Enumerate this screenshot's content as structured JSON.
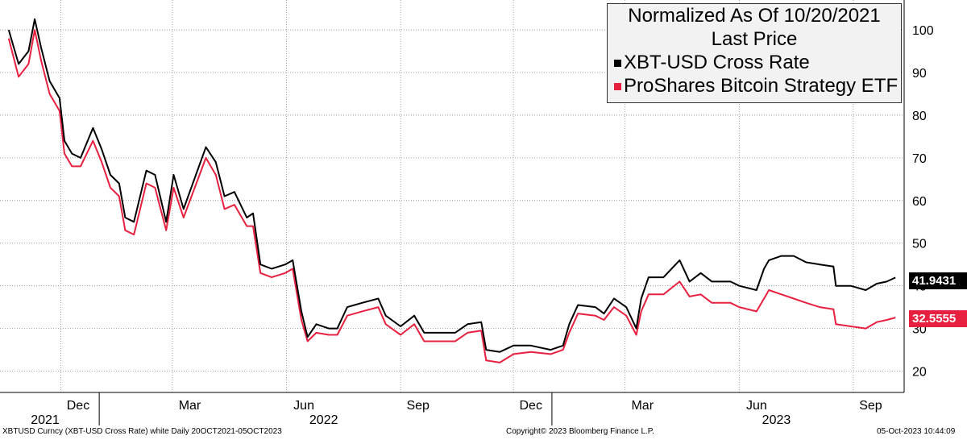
{
  "chart_data": {
    "type": "line",
    "title": "Normalized As Of 10/20/2021",
    "subtitle": "Last Price",
    "y_ticks": [
      20,
      30,
      40,
      50,
      60,
      70,
      80,
      90,
      100
    ],
    "ylim": [
      15,
      107
    ],
    "month_labels": [
      "Dec",
      "Mar",
      "Jun",
      "Sep",
      "Dec",
      "Mar",
      "Jun",
      "Sep"
    ],
    "year_labels": [
      "2021",
      "2022",
      "2023"
    ],
    "grid": true,
    "legend_position": "top-right",
    "series": [
      {
        "name": "XBT-USD Cross Rate",
        "color": "#000000",
        "last_value_label": "41.9431",
        "points": [
          [
            "2021-10-20",
            100
          ],
          [
            "2021-10-28",
            92
          ],
          [
            "2021-11-05",
            95
          ],
          [
            "2021-11-10",
            102.5
          ],
          [
            "2021-11-15",
            96
          ],
          [
            "2021-11-22",
            88
          ],
          [
            "2021-11-30",
            84
          ],
          [
            "2021-12-04",
            74
          ],
          [
            "2021-12-10",
            71
          ],
          [
            "2021-12-17",
            70
          ],
          [
            "2021-12-27",
            77
          ],
          [
            "2022-01-03",
            72
          ],
          [
            "2022-01-10",
            66
          ],
          [
            "2022-01-17",
            64
          ],
          [
            "2022-01-22",
            56
          ],
          [
            "2022-01-29",
            55
          ],
          [
            "2022-02-08",
            67
          ],
          [
            "2022-02-15",
            66
          ],
          [
            "2022-02-24",
            55
          ],
          [
            "2022-03-02",
            66
          ],
          [
            "2022-03-10",
            58
          ],
          [
            "2022-03-28",
            72.5
          ],
          [
            "2022-04-05",
            69
          ],
          [
            "2022-04-12",
            61
          ],
          [
            "2022-04-20",
            62
          ],
          [
            "2022-04-30",
            56
          ],
          [
            "2022-05-05",
            57
          ],
          [
            "2022-05-11",
            45
          ],
          [
            "2022-05-20",
            44
          ],
          [
            "2022-05-31",
            45
          ],
          [
            "2022-06-06",
            46
          ],
          [
            "2022-06-13",
            34
          ],
          [
            "2022-06-18",
            28
          ],
          [
            "2022-06-25",
            31
          ],
          [
            "2022-07-05",
            30
          ],
          [
            "2022-07-12",
            30
          ],
          [
            "2022-07-20",
            35
          ],
          [
            "2022-08-01",
            36
          ],
          [
            "2022-08-14",
            37
          ],
          [
            "2022-08-20",
            33
          ],
          [
            "2022-09-01",
            30.5
          ],
          [
            "2022-09-12",
            33
          ],
          [
            "2022-09-20",
            29
          ],
          [
            "2022-10-01",
            29
          ],
          [
            "2022-10-15",
            29
          ],
          [
            "2022-10-25",
            31
          ],
          [
            "2022-11-05",
            31.5
          ],
          [
            "2022-11-09",
            25
          ],
          [
            "2022-11-20",
            24.5
          ],
          [
            "2022-12-01",
            26
          ],
          [
            "2022-12-15",
            26
          ],
          [
            "2022-12-31",
            25
          ],
          [
            "2023-01-10",
            26
          ],
          [
            "2023-01-15",
            31
          ],
          [
            "2023-01-22",
            35.5
          ],
          [
            "2023-02-05",
            35
          ],
          [
            "2023-02-12",
            33.5
          ],
          [
            "2023-02-20",
            37
          ],
          [
            "2023-03-02",
            35
          ],
          [
            "2023-03-10",
            30
          ],
          [
            "2023-03-14",
            37
          ],
          [
            "2023-03-20",
            42
          ],
          [
            "2023-04-01",
            42
          ],
          [
            "2023-04-14",
            46
          ],
          [
            "2023-04-22",
            41
          ],
          [
            "2023-05-01",
            43
          ],
          [
            "2023-05-10",
            41
          ],
          [
            "2023-05-25",
            41
          ],
          [
            "2023-06-01",
            40
          ],
          [
            "2023-06-15",
            39
          ],
          [
            "2023-06-21",
            44
          ],
          [
            "2023-06-25",
            46
          ],
          [
            "2023-07-05",
            47
          ],
          [
            "2023-07-15",
            47
          ],
          [
            "2023-07-25",
            45.5
          ],
          [
            "2023-08-05",
            45
          ],
          [
            "2023-08-16",
            44.5
          ],
          [
            "2023-08-18",
            40
          ],
          [
            "2023-08-30",
            40
          ],
          [
            "2023-09-11",
            39
          ],
          [
            "2023-09-20",
            40.5
          ],
          [
            "2023-09-28",
            41
          ],
          [
            "2023-10-05",
            41.9431
          ]
        ]
      },
      {
        "name": "ProShares Bitcoin Strategy ETF",
        "color": "#e8203f",
        "last_value_label": "32.5555",
        "points": [
          [
            "2021-10-20",
            98
          ],
          [
            "2021-10-28",
            89
          ],
          [
            "2021-11-05",
            92
          ],
          [
            "2021-11-10",
            100
          ],
          [
            "2021-11-15",
            93
          ],
          [
            "2021-11-22",
            85
          ],
          [
            "2021-11-30",
            81
          ],
          [
            "2021-12-04",
            71
          ],
          [
            "2021-12-10",
            68
          ],
          [
            "2021-12-17",
            68
          ],
          [
            "2021-12-27",
            74
          ],
          [
            "2022-01-03",
            69
          ],
          [
            "2022-01-10",
            63
          ],
          [
            "2022-01-17",
            61
          ],
          [
            "2022-01-22",
            53
          ],
          [
            "2022-01-29",
            52
          ],
          [
            "2022-02-08",
            64
          ],
          [
            "2022-02-15",
            63
          ],
          [
            "2022-02-24",
            53
          ],
          [
            "2022-03-02",
            63
          ],
          [
            "2022-03-10",
            56
          ],
          [
            "2022-03-28",
            70
          ],
          [
            "2022-04-05",
            66
          ],
          [
            "2022-04-12",
            58
          ],
          [
            "2022-04-20",
            59
          ],
          [
            "2022-04-30",
            54
          ],
          [
            "2022-05-05",
            54
          ],
          [
            "2022-05-11",
            43
          ],
          [
            "2022-05-20",
            42
          ],
          [
            "2022-05-31",
            43
          ],
          [
            "2022-06-06",
            44
          ],
          [
            "2022-06-13",
            32
          ],
          [
            "2022-06-18",
            27
          ],
          [
            "2022-06-25",
            29
          ],
          [
            "2022-07-05",
            28.5
          ],
          [
            "2022-07-12",
            28.5
          ],
          [
            "2022-07-20",
            33
          ],
          [
            "2022-08-01",
            34
          ],
          [
            "2022-08-14",
            35
          ],
          [
            "2022-08-20",
            31
          ],
          [
            "2022-09-01",
            28.5
          ],
          [
            "2022-09-12",
            31
          ],
          [
            "2022-09-20",
            27
          ],
          [
            "2022-10-01",
            27
          ],
          [
            "2022-10-15",
            27
          ],
          [
            "2022-10-25",
            29
          ],
          [
            "2022-11-05",
            29.5
          ],
          [
            "2022-11-09",
            22.5
          ],
          [
            "2022-11-20",
            22
          ],
          [
            "2022-12-01",
            24
          ],
          [
            "2022-12-15",
            24.5
          ],
          [
            "2022-12-31",
            24
          ],
          [
            "2023-01-10",
            25
          ],
          [
            "2023-01-15",
            29
          ],
          [
            "2023-01-22",
            33.5
          ],
          [
            "2023-02-05",
            33
          ],
          [
            "2023-02-12",
            32
          ],
          [
            "2023-02-20",
            35
          ],
          [
            "2023-03-02",
            33
          ],
          [
            "2023-03-10",
            28.5
          ],
          [
            "2023-03-14",
            34
          ],
          [
            "2023-03-20",
            38
          ],
          [
            "2023-04-01",
            38
          ],
          [
            "2023-04-14",
            41
          ],
          [
            "2023-04-22",
            37.5
          ],
          [
            "2023-05-01",
            38
          ],
          [
            "2023-05-10",
            36
          ],
          [
            "2023-05-25",
            36
          ],
          [
            "2023-06-01",
            35
          ],
          [
            "2023-06-15",
            34
          ],
          [
            "2023-06-21",
            37
          ],
          [
            "2023-06-25",
            39
          ],
          [
            "2023-07-05",
            38
          ],
          [
            "2023-07-15",
            37
          ],
          [
            "2023-07-25",
            36
          ],
          [
            "2023-08-05",
            35
          ],
          [
            "2023-08-16",
            34.5
          ],
          [
            "2023-08-18",
            31
          ],
          [
            "2023-08-30",
            30.5
          ],
          [
            "2023-09-11",
            30
          ],
          [
            "2023-09-20",
            31.5
          ],
          [
            "2023-09-28",
            32
          ],
          [
            "2023-10-05",
            32.5555
          ]
        ]
      }
    ]
  },
  "footer": {
    "left": "XBTUSD Curncy (XBT-USD Cross Rate) white  Daily 20OCT2021-05OCT2023",
    "center": "Copyright© 2023 Bloomberg Finance L.P.",
    "right": "05-Oct-2023 10:44:09"
  }
}
